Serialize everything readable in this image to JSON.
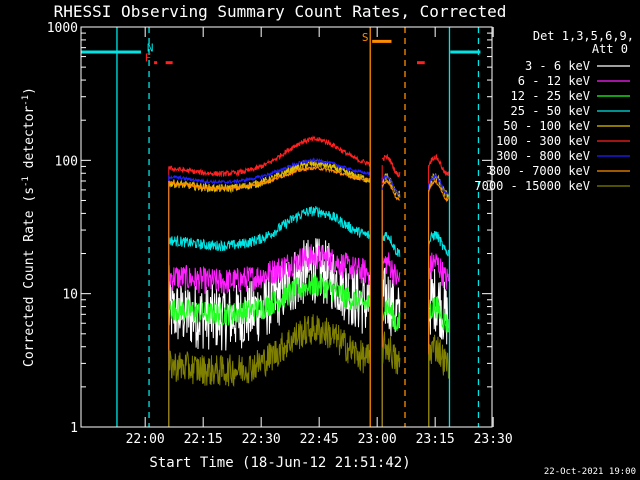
{
  "chart_data": {
    "type": "line",
    "title": "RHESSI Observing Summary Count Rates, Corrected",
    "xlabel": "Start Time (18-Jun-12 21:51:42)",
    "ylabel_main": "Corrected Count Rate (s",
    "ylabel_sup1": "-1",
    "ylabel_mid": " detector",
    "ylabel_sup2": "-1",
    "ylabel_end": ")",
    "y_scale": "log",
    "ylim": [
      1,
      1000
    ],
    "xlim_min": [
      -8.3,
      98
    ],
    "x_ticks": [
      {
        "m": 8.3,
        "label": "22:00"
      },
      {
        "m": 23.3,
        "label": "22:15"
      },
      {
        "m": 38.3,
        "label": "22:30"
      },
      {
        "m": 53.3,
        "label": "22:45"
      },
      {
        "m": 68.3,
        "label": "23:00"
      },
      {
        "m": 83.3,
        "label": "23:15"
      },
      {
        "m": 98.3,
        "label": "23:30"
      }
    ],
    "y_ticks": [
      {
        "v": 1,
        "label": "1"
      },
      {
        "v": 10,
        "label": "10"
      },
      {
        "v": 100,
        "label": "100"
      },
      {
        "v": 1000,
        "label": "1000"
      }
    ],
    "legend_header": [
      "Det 1,3,5,6,9,",
      "Att 0"
    ],
    "legend_placement": "right",
    "footer_date": "22-Oct-2021 19:00",
    "segments": [
      [
        14.4,
        66.4
      ],
      [
        69.6,
        74.2
      ],
      [
        81.6,
        86.8
      ]
    ],
    "gap_marks": [
      {
        "m": 66.5,
        "color": "#ff8c00",
        "style": "solid"
      },
      {
        "m": 75.5,
        "color": "#ff8c00",
        "style": "dashed"
      },
      {
        "m": 1.0,
        "color": "#00e5e5",
        "style": "solid"
      },
      {
        "m": 9.3,
        "color": "#00e5e5",
        "style": "dashed"
      },
      {
        "m": 87.0,
        "color": "#00e5e5",
        "style": "solid"
      },
      {
        "m": 94.5,
        "color": "#00e5e5",
        "style": "dashed"
      }
    ],
    "flags": [
      {
        "label": "N",
        "color": "#00e5e5",
        "m": 9.6,
        "y": 700,
        "x0": -8.3,
        "x1": 7.2,
        "y_bar": 650
      },
      {
        "label": "",
        "color": "#00e5e5",
        "m": 87.2,
        "y": 700,
        "x0": 87.2,
        "x1": 95.0,
        "y_bar": 650
      },
      {
        "label": "S",
        "color": "#ff8c00",
        "m": 65.2,
        "y": 840,
        "x0": 67.0,
        "x1": 72.0,
        "y_bar": 780
      },
      {
        "label": "F",
        "color": "#ff2020",
        "m": 9.0,
        "y": 590,
        "x0": 10.6,
        "x1": 11.4,
        "y_bar": 540
      },
      {
        "label": "",
        "color": "#ff2020",
        "m": 14.0,
        "y": 540,
        "x0": 13.6,
        "x1": 15.4,
        "y_bar": 540
      },
      {
        "label": "",
        "color": "#ff2020",
        "m": 79.0,
        "y": 540,
        "x0": 78.6,
        "x1": 80.6,
        "y_bar": 540
      }
    ],
    "series": [
      {
        "name": "3 - 6 keV",
        "color": "#ffffff",
        "base": 7.5,
        "peak": 2.0,
        "noise": 0.25,
        "right": 8.0
      },
      {
        "name": "6 - 12 keV",
        "color": "#ff20ff",
        "base": 14.0,
        "peak": 1.35,
        "noise": 0.1,
        "right": 15.0
      },
      {
        "name": "12 - 25 keV",
        "color": "#20ff20",
        "base": 8.0,
        "peak": 1.45,
        "noise": 0.09,
        "right": 7.0
      },
      {
        "name": "25 - 50 keV",
        "color": "#00e5e5",
        "base": 26.0,
        "peak": 1.6,
        "noise": 0.04,
        "right": 24.0
      },
      {
        "name": "50 - 100 keV",
        "color": "#e0c000",
        "base": 70.0,
        "peak": 1.35,
        "noise": 0.03,
        "right": 65.0
      },
      {
        "name": "100 - 300 keV",
        "color": "#ff2020",
        "base": 90.0,
        "peak": 1.6,
        "noise": 0.02,
        "right": 92.0
      },
      {
        "name": "300 - 800 keV",
        "color": "#2020ff",
        "base": 78.0,
        "peak": 1.28,
        "noise": 0.012,
        "right": 66.0
      },
      {
        "name": "800 - 7000 keV",
        "color": "#ff8c00",
        "base": 70.0,
        "peak": 1.25,
        "noise": 0.012,
        "right": 60.0
      },
      {
        "name": "7000 - 15000 keV",
        "color": "#808000",
        "base": 3.0,
        "peak": 1.8,
        "noise": 0.12,
        "right": 3.5
      }
    ]
  }
}
